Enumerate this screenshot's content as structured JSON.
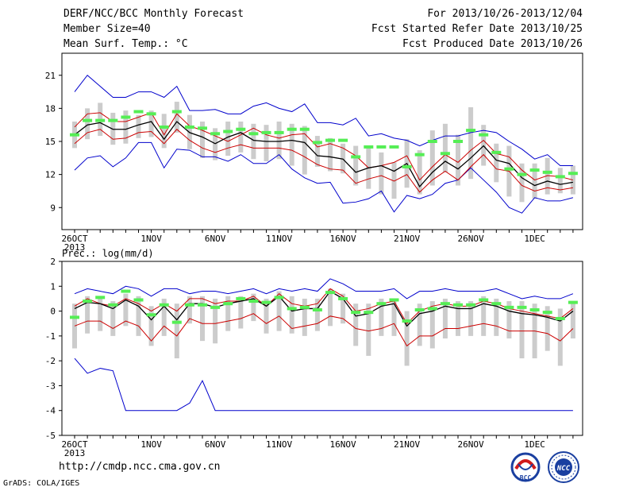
{
  "header": {
    "left": [
      "DERF/NCC/BCC Monthly Forecast",
      "Member Size=40",
      "Mean Surf. Temp.: °C"
    ],
    "right": [
      "For 2013/10/26-2013/12/04",
      "Fcst Started Refer Date 2013/10/25",
      "Fcst Produced Date 2013/10/26"
    ]
  },
  "footer": {
    "url": "http://cmdp.ncc.cma.gov.cn",
    "grads": "GrADS: COLA/IGES",
    "logo_left": "BCC",
    "logo_right": "NCC"
  },
  "colors": {
    "band_outer": "#0000cc",
    "band_inner": "#cc0000",
    "mean": "#000000",
    "box": "#cccccc",
    "obs": "#55ee55"
  },
  "chart_data": [
    {
      "type": "line",
      "name": "temperature",
      "ylabel": "",
      "ylim": [
        7,
        23
      ],
      "yticks": [
        9,
        12,
        15,
        18,
        21
      ],
      "xticks": [
        {
          "day": 1,
          "label": "26OCT",
          "sub": "2013"
        },
        {
          "day": 7,
          "label": "1NOV"
        },
        {
          "day": 12,
          "label": "6NOV"
        },
        {
          "day": 17,
          "label": "11NOV"
        },
        {
          "day": 22,
          "label": "16NOV"
        },
        {
          "day": 27,
          "label": "21NOV"
        },
        {
          "day": 32,
          "label": "26NOV"
        },
        {
          "day": 37,
          "label": "1DEC"
        }
      ],
      "days": 40,
      "max": [
        19.5,
        21.0,
        20.0,
        19.0,
        19.0,
        19.5,
        19.5,
        19.0,
        20.0,
        17.8,
        17.8,
        17.9,
        17.5,
        17.5,
        18.2,
        18.5,
        18.0,
        17.7,
        18.4,
        16.7,
        16.7,
        16.5,
        17.1,
        15.5,
        15.7,
        15.3,
        15.1,
        14.6,
        15.1,
        15.5,
        15.5,
        15.8,
        16.0,
        15.8,
        15.0,
        14.3,
        13.4,
        13.8,
        12.8,
        12.8
      ],
      "p_high": [
        16.3,
        17.5,
        17.6,
        16.8,
        16.8,
        17.2,
        17.6,
        15.6,
        17.5,
        16.4,
        16.0,
        15.5,
        15.0,
        15.6,
        16.2,
        15.6,
        15.3,
        15.6,
        15.7,
        14.5,
        14.8,
        14.4,
        13.7,
        12.6,
        12.8,
        13.1,
        13.7,
        11.5,
        12.7,
        13.8,
        13.1,
        14.2,
        15.1,
        13.9,
        13.6,
        12.4,
        11.5,
        11.9,
        11.8,
        11.5
      ],
      "mean": [
        15.6,
        16.5,
        16.7,
        16.1,
        16.1,
        16.5,
        16.8,
        15.2,
        16.8,
        15.8,
        15.4,
        14.8,
        15.4,
        15.8,
        15.1,
        15.0,
        15.0,
        15.1,
        14.9,
        13.7,
        13.6,
        13.4,
        12.2,
        12.6,
        12.8,
        12.3,
        13.0,
        10.9,
        12.2,
        13.2,
        12.5,
        13.5,
        14.6,
        13.3,
        13.0,
        11.7,
        11.0,
        11.4,
        11.1,
        11.3
      ],
      "p_low": [
        14.8,
        15.8,
        16.1,
        15.2,
        15.3,
        15.8,
        15.9,
        14.8,
        16.1,
        15.1,
        14.4,
        14.0,
        14.4,
        14.7,
        14.4,
        14.4,
        14.4,
        14.2,
        13.6,
        12.9,
        12.5,
        12.4,
        11.2,
        11.6,
        11.9,
        11.4,
        12.0,
        10.4,
        11.5,
        12.3,
        11.5,
        12.7,
        13.8,
        12.5,
        12.3,
        11.0,
        10.5,
        10.8,
        10.6,
        10.8
      ],
      "min": [
        12.4,
        13.5,
        13.7,
        12.7,
        13.5,
        14.9,
        14.9,
        12.6,
        14.3,
        14.2,
        13.6,
        13.6,
        13.2,
        13.8,
        13.0,
        13.0,
        13.8,
        12.5,
        11.7,
        11.2,
        11.3,
        9.4,
        9.5,
        9.8,
        10.5,
        8.6,
        10.1,
        9.8,
        10.2,
        11.2,
        11.5,
        12.6,
        11.5,
        10.4,
        9.0,
        8.5,
        9.9,
        9.6,
        9.6,
        9.9
      ],
      "box_high": [
        16.8,
        18.0,
        18.5,
        17.6,
        17.8,
        17.4,
        17.8,
        17.5,
        18.6,
        17.4,
        16.8,
        16.2,
        16.8,
        16.8,
        16.6,
        16.5,
        16.8,
        16.6,
        16.4,
        15.5,
        15.3,
        14.8,
        14.6,
        14.6,
        14.0,
        13.1,
        15.2,
        14.2,
        16.0,
        16.6,
        15.6,
        18.1,
        16.5,
        14.8,
        14.6,
        13.0,
        13.0,
        13.5,
        12.6,
        12.8
      ],
      "box_low": [
        14.4,
        15.2,
        15.5,
        14.7,
        14.8,
        15.3,
        15.4,
        14.4,
        15.8,
        14.3,
        13.5,
        13.3,
        13.7,
        14.0,
        13.4,
        13.2,
        13.4,
        12.8,
        12.0,
        12.7,
        12.3,
        12.1,
        11.0,
        10.7,
        10.2,
        9.8,
        10.8,
        10.2,
        11.0,
        12.2,
        11.0,
        11.6,
        12.8,
        11.3,
        10.0,
        9.5,
        9.8,
        10.2,
        10.3,
        10.2
      ],
      "obs": [
        15.6,
        16.9,
        16.9,
        16.9,
        17.2,
        17.7,
        17.5,
        16.3,
        17.7,
        16.3,
        16.2,
        15.7,
        15.9,
        16.1,
        15.7,
        15.8,
        15.8,
        16.1,
        16.1,
        14.9,
        15.1,
        15.1,
        13.6,
        14.5,
        14.5,
        14.5,
        12.7,
        13.8,
        15.0,
        13.9,
        15.0,
        16.0,
        15.6,
        14.0,
        12.5,
        12.0,
        12.4,
        12.2,
        11.8,
        12.1
      ]
    },
    {
      "type": "line",
      "name": "precipitation",
      "ylabel": "Prec.: log(mm/d)",
      "ylim": [
        -5,
        2
      ],
      "yticks": [
        -5,
        -4,
        -3,
        -2,
        -1,
        0,
        1,
        2
      ],
      "xticks": [
        {
          "day": 1,
          "label": "26OCT",
          "sub": "2013"
        },
        {
          "day": 7,
          "label": "1NOV"
        },
        {
          "day": 12,
          "label": "6NOV"
        },
        {
          "day": 17,
          "label": "11NOV"
        },
        {
          "day": 22,
          "label": "16NOV"
        },
        {
          "day": 27,
          "label": "21NOV"
        },
        {
          "day": 32,
          "label": "26NOV"
        },
        {
          "day": 37,
          "label": "1DEC"
        }
      ],
      "days": 40,
      "max": [
        0.7,
        0.9,
        0.8,
        0.7,
        1.0,
        0.9,
        0.6,
        0.9,
        0.9,
        0.7,
        0.8,
        0.8,
        0.7,
        0.8,
        0.9,
        0.7,
        0.9,
        0.8,
        0.9,
        0.8,
        1.3,
        1.1,
        0.8,
        0.8,
        0.8,
        0.9,
        0.5,
        0.8,
        0.8,
        0.9,
        0.8,
        0.8,
        0.8,
        0.9,
        0.7,
        0.5,
        0.6,
        0.5,
        0.5,
        0.7
      ],
      "p_high": [
        0.2,
        0.5,
        0.3,
        0.2,
        0.5,
        0.3,
        0.0,
        0.3,
        0.0,
        0.5,
        0.5,
        0.3,
        0.4,
        0.4,
        0.6,
        0.2,
        0.7,
        0.3,
        0.2,
        0.3,
        0.9,
        0.6,
        0.0,
        0.1,
        0.3,
        0.4,
        -0.5,
        0.0,
        0.2,
        0.3,
        0.2,
        0.2,
        0.4,
        0.3,
        0.1,
        0.0,
        -0.1,
        -0.2,
        -0.3,
        0.1
      ],
      "mean": [
        0.1,
        0.35,
        0.3,
        0.1,
        0.45,
        0.2,
        -0.35,
        0.2,
        -0.35,
        0.3,
        0.3,
        0.15,
        0.3,
        0.4,
        0.5,
        0.2,
        0.6,
        0.0,
        0.1,
        0.1,
        0.8,
        0.5,
        -0.2,
        -0.1,
        0.2,
        0.3,
        -0.6,
        -0.1,
        0.0,
        0.2,
        0.1,
        0.1,
        0.3,
        0.2,
        0.0,
        -0.1,
        -0.15,
        -0.25,
        -0.4,
        0.0
      ],
      "p_low": [
        -0.6,
        -0.4,
        -0.4,
        -0.7,
        -0.4,
        -0.6,
        -1.2,
        -0.6,
        -1.0,
        -0.3,
        -0.5,
        -0.5,
        -0.4,
        -0.3,
        -0.1,
        -0.5,
        -0.2,
        -0.7,
        -0.6,
        -0.5,
        -0.2,
        -0.3,
        -0.7,
        -0.8,
        -0.7,
        -0.5,
        -1.4,
        -1.0,
        -1.0,
        -0.7,
        -0.7,
        -0.6,
        -0.5,
        -0.6,
        -0.8,
        -0.8,
        -0.8,
        -0.9,
        -1.2,
        -0.7
      ],
      "min": [
        -1.9,
        -2.5,
        -2.3,
        -2.4,
        -4.0,
        -4.0,
        -4.0,
        -4.0,
        -4.0,
        -3.7,
        -2.8,
        -4.0,
        -4.0,
        -4.0,
        -4.0,
        -4.0,
        -4.0,
        -4.0,
        -4.0,
        -4.0,
        -4.0,
        -4.0,
        -4.0,
        -4.0,
        -4.0,
        -4.0,
        -4.0,
        -4.0,
        -4.0,
        -4.0,
        -4.0,
        -4.0,
        -4.0,
        -4.0,
        -4.0,
        -4.0,
        -4.0,
        -4.0,
        -4.0,
        -4.0
      ],
      "box_high": [
        0.3,
        0.6,
        0.6,
        0.4,
        0.7,
        0.6,
        0.2,
        0.5,
        0.3,
        0.6,
        0.6,
        0.5,
        0.6,
        0.6,
        0.7,
        0.5,
        0.8,
        0.6,
        0.5,
        0.5,
        0.9,
        0.7,
        0.3,
        0.3,
        0.5,
        0.5,
        0.0,
        0.3,
        0.4,
        0.5,
        0.4,
        0.4,
        0.6,
        0.5,
        0.4,
        0.4,
        0.3,
        0.2,
        0.1,
        0.4
      ],
      "box_low": [
        -1.5,
        -0.9,
        -0.8,
        -1.0,
        -0.6,
        -1.0,
        -1.4,
        -1.0,
        -1.9,
        -0.5,
        -1.2,
        -1.3,
        -0.8,
        -0.7,
        -0.4,
        -0.9,
        -0.8,
        -0.9,
        -1.0,
        -0.8,
        -0.6,
        -0.5,
        -1.4,
        -1.8,
        -1.0,
        -1.0,
        -2.2,
        -1.4,
        -1.5,
        -1.1,
        -1.0,
        -1.0,
        -1.0,
        -1.0,
        -1.1,
        -1.9,
        -1.9,
        -1.6,
        -2.2,
        -1.1
      ],
      "obs": [
        -0.25,
        0.4,
        0.55,
        0.25,
        0.8,
        0.45,
        -0.15,
        0.25,
        -0.45,
        0.25,
        0.25,
        0.15,
        0.3,
        0.5,
        0.4,
        0.35,
        0.55,
        0.1,
        0.15,
        0.05,
        0.75,
        0.5,
        -0.05,
        -0.05,
        0.3,
        0.45,
        -0.4,
        0.05,
        0.1,
        0.3,
        0.25,
        0.25,
        0.45,
        0.3,
        0.15,
        0.15,
        0.05,
        -0.05,
        -0.3,
        0.35
      ]
    }
  ]
}
